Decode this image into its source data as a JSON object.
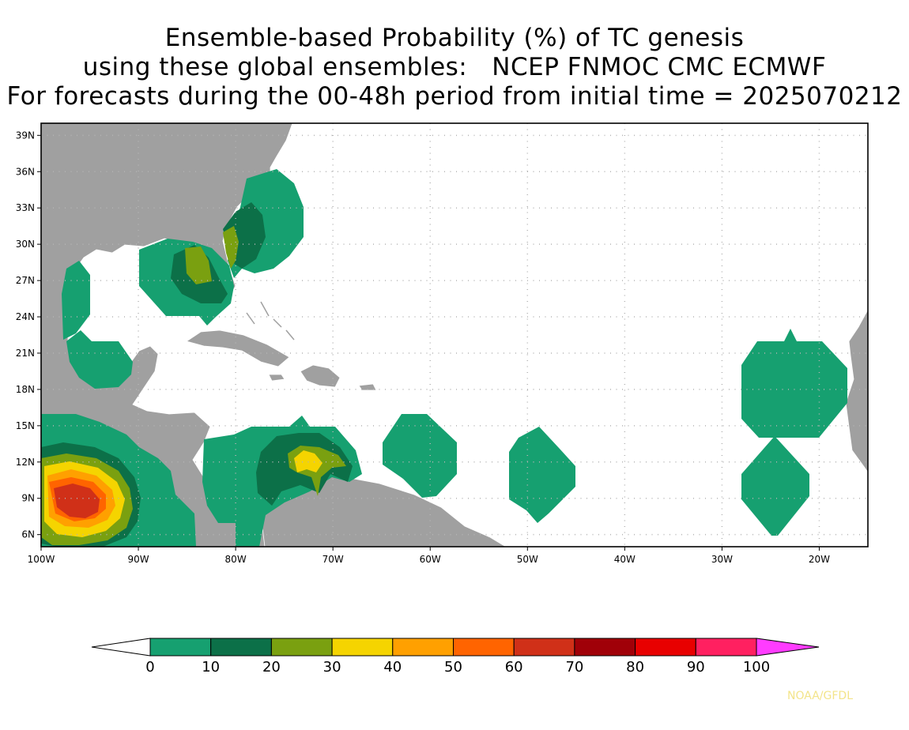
{
  "title": {
    "line1": "Ensemble-based Probability (%) of TC genesis",
    "line2": "using these global ensembles:   NCEP FNMOC CMC ECMWF",
    "line3": "For forecasts during the 00-48h period from initial time = 2025070212"
  },
  "credit": "NOAA/GFDL",
  "map": {
    "lon_range": [
      -100,
      -15
    ],
    "lat_range": [
      5,
      40
    ],
    "lat_ticks": [
      {
        "value": 39,
        "label": "39N"
      },
      {
        "value": 36,
        "label": "36N"
      },
      {
        "value": 33,
        "label": "33N"
      },
      {
        "value": 30,
        "label": "30N"
      },
      {
        "value": 27,
        "label": "27N"
      },
      {
        "value": 24,
        "label": "24N"
      },
      {
        "value": 21,
        "label": "21N"
      },
      {
        "value": 18,
        "label": "18N"
      },
      {
        "value": 15,
        "label": "15N"
      },
      {
        "value": 12,
        "label": "12N"
      },
      {
        "value": 9,
        "label": "9N"
      },
      {
        "value": 6,
        "label": "6N"
      }
    ],
    "lon_ticks": [
      {
        "value": -100,
        "label": "100W"
      },
      {
        "value": -90,
        "label": "90W"
      },
      {
        "value": -80,
        "label": "80W"
      },
      {
        "value": -70,
        "label": "70W"
      },
      {
        "value": -60,
        "label": "60W"
      },
      {
        "value": -50,
        "label": "50W"
      },
      {
        "value": -40,
        "label": "40W"
      },
      {
        "value": -30,
        "label": "30W"
      },
      {
        "value": -20,
        "label": "20W"
      }
    ],
    "grid": true,
    "land_color": "#a0a0a0"
  },
  "colorbar": {
    "labels": [
      "0",
      "10",
      "20",
      "30",
      "40",
      "50",
      "60",
      "70",
      "80",
      "90",
      "100"
    ],
    "colors": [
      "#16a070",
      "#0c7048",
      "#7aa010",
      "#f5d400",
      "#ffa000",
      "#ff6400",
      "#d03018",
      "#a00008",
      "#e80000",
      "#ff2060"
    ],
    "under_color": "#ffffff",
    "over_color": "#ff3cff"
  }
}
